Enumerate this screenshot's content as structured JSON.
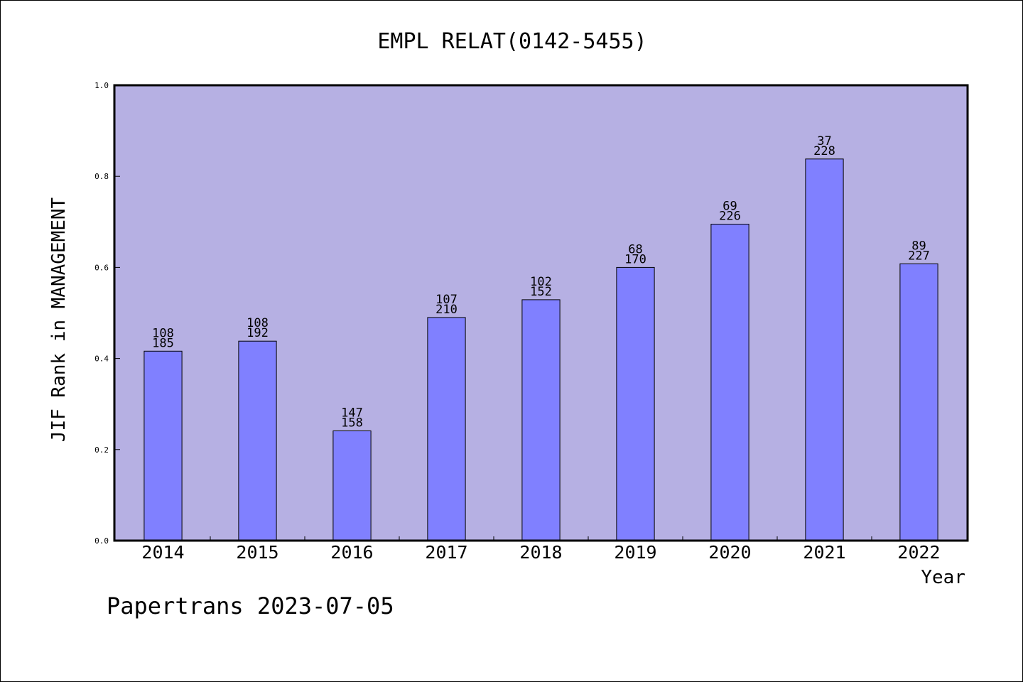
{
  "chart_data": {
    "type": "bar",
    "title": "EMPL RELAT(0142-5455)",
    "xlabel": "Year",
    "ylabel": "JIF Rank in MANAGEMENT",
    "ylim": [
      0.0,
      1.0
    ],
    "yticks": [
      "0.0",
      "0.2",
      "0.4",
      "0.6",
      "0.8",
      "1.0"
    ],
    "categories": [
      "2014",
      "2015",
      "2016",
      "2017",
      "2018",
      "2019",
      "2020",
      "2021",
      "2022"
    ],
    "values": [
      0.416,
      0.438,
      0.241,
      0.49,
      0.529,
      0.6,
      0.695,
      0.838,
      0.608
    ],
    "rank": [
      "108",
      "108",
      "147",
      "107",
      "102",
      "68",
      "69",
      "37",
      "89"
    ],
    "total": [
      "185",
      "192",
      "158",
      "210",
      "152",
      "170",
      "226",
      "228",
      "227"
    ],
    "grid": false,
    "colors": {
      "plot_background": "#b6b0e3",
      "bar_fill": "#8080ff",
      "bar_stroke": "#000000"
    }
  },
  "footer": {
    "credit": "Papertrans 2023-07-05"
  }
}
